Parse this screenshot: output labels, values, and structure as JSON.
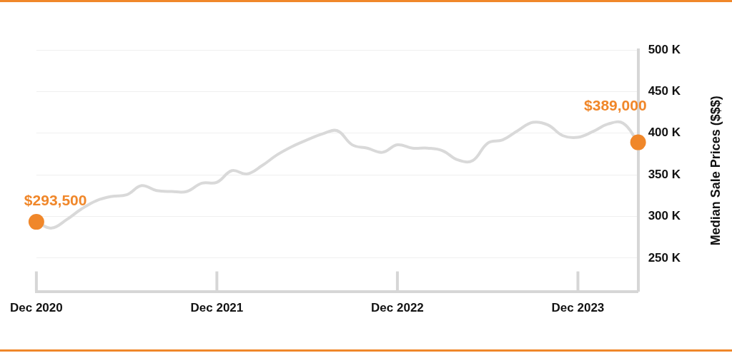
{
  "chart_data": {
    "type": "line",
    "ylabel": "Median Sale Prices ($$$)",
    "categories": [
      "Dec 2020",
      null,
      null,
      null,
      null,
      null,
      null,
      null,
      null,
      null,
      null,
      null,
      "Dec 2021",
      null,
      null,
      null,
      null,
      null,
      null,
      null,
      null,
      null,
      null,
      null,
      "Dec 2022",
      null,
      null,
      null,
      null,
      null,
      null,
      null,
      null,
      null,
      null,
      null,
      "Dec 2023",
      null,
      null,
      null,
      null
    ],
    "values": [
      293500,
      286000,
      296000,
      309000,
      319000,
      324000,
      326000,
      337000,
      331000,
      330000,
      330000,
      340000,
      341000,
      355000,
      351000,
      361000,
      374000,
      384000,
      392000,
      399000,
      403000,
      386000,
      382000,
      377000,
      386000,
      382000,
      382000,
      379000,
      368000,
      367000,
      388000,
      392000,
      403000,
      413000,
      410000,
      397000,
      395000,
      402000,
      411000,
      412000,
      389000
    ],
    "value_labels": [
      "$293,500",
      null,
      null,
      null,
      null,
      null,
      null,
      null,
      null,
      null,
      null,
      null,
      null,
      null,
      null,
      null,
      null,
      null,
      null,
      null,
      null,
      null,
      null,
      null,
      null,
      null,
      null,
      null,
      null,
      null,
      null,
      null,
      null,
      null,
      null,
      null,
      null,
      null,
      null,
      null,
      "$389,000"
    ],
    "color": "#d9d9d9",
    "ylim": [
      210000,
      500000
    ],
    "yticks": [
      {
        "value": 250000,
        "label": "250 K"
      },
      {
        "value": 300000,
        "label": "300 K"
      },
      {
        "value": 350000,
        "label": "350 K"
      },
      {
        "value": 400000,
        "label": "400 K"
      },
      {
        "value": 450000,
        "label": "450 K"
      },
      {
        "value": 500000,
        "label": "500 K"
      }
    ],
    "grid": true
  }
}
